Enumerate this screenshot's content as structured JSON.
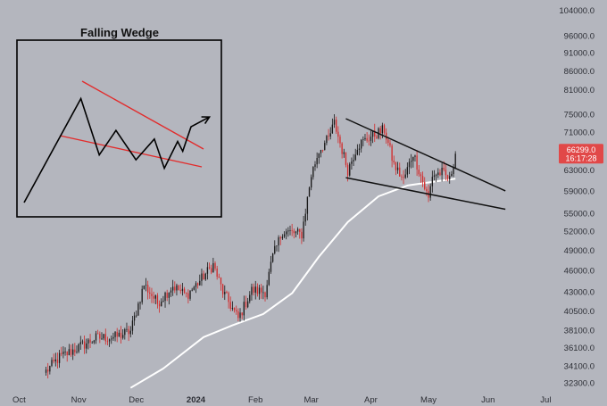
{
  "chart_data": {
    "type": "candlestick",
    "title": "",
    "xlabel": "",
    "ylabel": "",
    "y_scale": "log",
    "ylim": [
      31600,
      105000
    ],
    "xlim": [
      "2023-10-05",
      "2024-07-05"
    ],
    "grid": false,
    "legend": "none",
    "colors": {
      "background": "#b4b6be",
      "up": "#1a1a1a",
      "down": "#d22b2b",
      "moving_average": "#ffffff",
      "trendline": "#111111",
      "price_tag": "#e14848"
    },
    "x_ticks": [
      {
        "label": "Oct",
        "date": "2023-10-01"
      },
      {
        "label": "Nov",
        "date": "2023-11-01"
      },
      {
        "label": "Dec",
        "date": "2023-12-01"
      },
      {
        "label": "2024",
        "date": "2024-01-01"
      },
      {
        "label": "Feb",
        "date": "2024-02-01"
      },
      {
        "label": "Mar",
        "date": "2024-03-01"
      },
      {
        "label": "Apr",
        "date": "2024-04-01"
      },
      {
        "label": "May",
        "date": "2024-05-01"
      },
      {
        "label": "Jun",
        "date": "2024-06-01"
      },
      {
        "label": "Jul",
        "date": "2024-07-01"
      }
    ],
    "y_ticks": [
      {
        "label": "104000.0",
        "value": 104000
      },
      {
        "label": "96000.0",
        "value": 96000
      },
      {
        "label": "91000.0",
        "value": 91000
      },
      {
        "label": "86000.0",
        "value": 86000
      },
      {
        "label": "81000.0",
        "value": 81000
      },
      {
        "label": "75000.0",
        "value": 75000
      },
      {
        "label": "71000.0",
        "value": 71000
      },
      {
        "label": "63000.0",
        "value": 63000
      },
      {
        "label": "59000.0",
        "value": 59000
      },
      {
        "label": "55000.0",
        "value": 55000
      },
      {
        "label": "52000.0",
        "value": 52000
      },
      {
        "label": "49000.0",
        "value": 49000
      },
      {
        "label": "46000.0",
        "value": 46000
      },
      {
        "label": "43000.0",
        "value": 43000
      },
      {
        "label": "40500.0",
        "value": 40500
      },
      {
        "label": "38100.0",
        "value": 38100
      },
      {
        "label": "36100.0",
        "value": 36100
      },
      {
        "label": "34100.0",
        "value": 34100
      },
      {
        "label": "32300.0",
        "value": 32300
      }
    ],
    "price_tag": {
      "price_label": "66299.0",
      "countdown": "16:17:28",
      "value": 66299
    },
    "anchors": [
      [
        "2023-10-15",
        33500
      ],
      [
        "2023-10-22",
        35000
      ],
      [
        "2023-10-31",
        36000
      ],
      [
        "2023-11-10",
        37200
      ],
      [
        "2023-11-20",
        37300
      ],
      [
        "2023-11-28",
        38000
      ],
      [
        "2023-12-05",
        44000
      ],
      [
        "2023-12-12",
        41500
      ],
      [
        "2023-12-20",
        43800
      ],
      [
        "2023-12-27",
        42500
      ],
      [
        "2024-01-03",
        44500
      ],
      [
        "2024-01-10",
        46800
      ],
      [
        "2024-01-15",
        43000
      ],
      [
        "2024-01-23",
        39500
      ],
      [
        "2024-01-30",
        43200
      ],
      [
        "2024-02-06",
        43000
      ],
      [
        "2024-02-10",
        48000
      ],
      [
        "2024-02-15",
        52000
      ],
      [
        "2024-02-25",
        51500
      ],
      [
        "2024-03-01",
        62000
      ],
      [
        "2024-03-05",
        67000
      ],
      [
        "2024-03-10",
        69500
      ],
      [
        "2024-03-13",
        73000
      ],
      [
        "2024-03-20",
        63000
      ],
      [
        "2024-03-25",
        68000
      ],
      [
        "2024-04-01",
        70000
      ],
      [
        "2024-04-08",
        71500
      ],
      [
        "2024-04-13",
        64000
      ],
      [
        "2024-04-18",
        61000
      ],
      [
        "2024-04-23",
        66500
      ],
      [
        "2024-05-01",
        57500
      ],
      [
        "2024-05-03",
        62000
      ],
      [
        "2024-05-08",
        62500
      ],
      [
        "2024-05-12",
        61000
      ],
      [
        "2024-05-15",
        66300
      ]
    ],
    "moving_average": [
      [
        "2023-11-28",
        31800
      ],
      [
        "2023-12-15",
        33800
      ],
      [
        "2024-01-05",
        37300
      ],
      [
        "2024-01-20",
        38700
      ],
      [
        "2024-02-05",
        40100
      ],
      [
        "2024-02-20",
        42800
      ],
      [
        "2024-03-05",
        48000
      ],
      [
        "2024-03-20",
        53500
      ],
      [
        "2024-04-05",
        58000
      ],
      [
        "2024-04-20",
        60000
      ],
      [
        "2024-05-05",
        60800
      ],
      [
        "2024-05-15",
        61300
      ]
    ],
    "wedge_lines": [
      {
        "name": "upper",
        "points": [
          [
            "2024-03-19",
            74000
          ],
          [
            "2024-06-10",
            59000
          ]
        ]
      },
      {
        "name": "lower",
        "points": [
          [
            "2024-03-19",
            61500
          ],
          [
            "2024-06-10",
            55700
          ]
        ]
      }
    ],
    "inset": {
      "title": "Falling Wedge",
      "price_path": [
        [
          0,
          1
        ],
        [
          0.34,
          0.15
        ],
        [
          0.45,
          0.61
        ],
        [
          0.55,
          0.41
        ],
        [
          0.67,
          0.65
        ],
        [
          0.78,
          0.48
        ],
        [
          0.84,
          0.72
        ],
        [
          0.92,
          0.5
        ],
        [
          0.95,
          0.58
        ],
        [
          1,
          0.38
        ],
        [
          1.11,
          0.3
        ]
      ]
    }
  }
}
